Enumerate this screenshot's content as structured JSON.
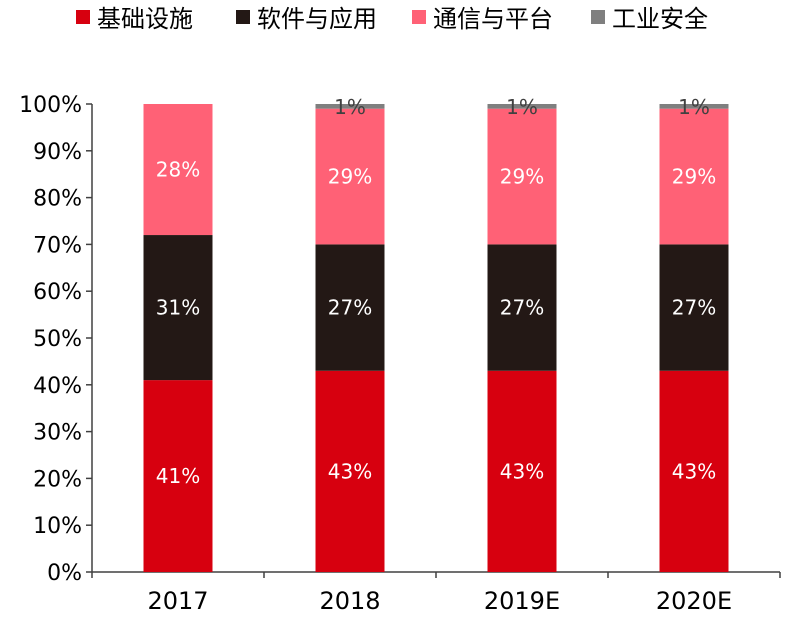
{
  "chart_data": {
    "type": "bar",
    "stacked": true,
    "categories": [
      "2017",
      "2018",
      "2019E",
      "2020E"
    ],
    "series": [
      {
        "name": "基础设施",
        "values": [
          41,
          43,
          43,
          43
        ],
        "color": "#d7000f",
        "labels": [
          "41%",
          "43%",
          "43%",
          "43%"
        ],
        "label_color": "#ffffff"
      },
      {
        "name": "软件与应用",
        "values": [
          31,
          27,
          27,
          27
        ],
        "color": "#231815",
        "labels": [
          "31%",
          "27%",
          "27%",
          "27%"
        ],
        "label_color": "#ffffff"
      },
      {
        "name": "通信与平台",
        "values": [
          28,
          29,
          29,
          29
        ],
        "color": "#ff6176",
        "labels": [
          "28%",
          "29%",
          "29%",
          "29%"
        ],
        "label_color": "#ffffff"
      },
      {
        "name": "工业安全",
        "values": [
          0,
          1,
          1,
          1
        ],
        "color": "#7f7f7f",
        "labels": [
          "",
          "1%",
          "1%",
          "1%"
        ],
        "label_color": "#404040"
      }
    ],
    "ylim": [
      0,
      100
    ],
    "yticks": [
      "0%",
      "10%",
      "20%",
      "30%",
      "40%",
      "50%",
      "60%",
      "70%",
      "80%",
      "90%",
      "100%"
    ],
    "legend_position": "top",
    "grid": false
  }
}
